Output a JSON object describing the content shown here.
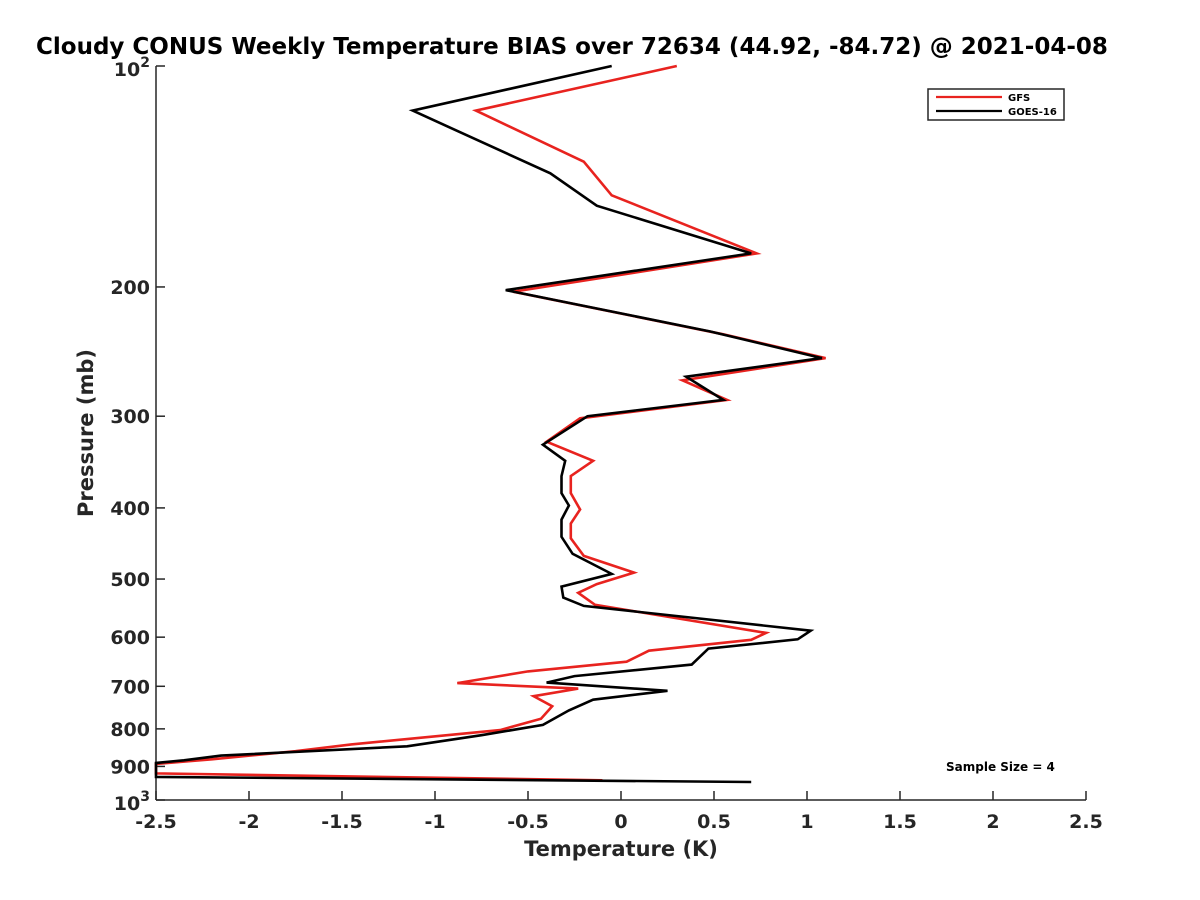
{
  "chart_data": {
    "type": "line",
    "title": "Cloudy CONUS Weekly Temperature BIAS over 72634 (44.92, -84.72) @ 2021-04-08",
    "xlabel": "Temperature (K)",
    "ylabel": "Pressure (mb)",
    "xlim": [
      -2.5,
      2.5
    ],
    "ylim": [
      100,
      1000
    ],
    "y_scale": "log",
    "y_direction": "reversed",
    "x_ticks": [
      "-2.5",
      "-2",
      "-1.5",
      "-1",
      "-0.5",
      "0",
      "0.5",
      "1",
      "1.5",
      "2",
      "2.5"
    ],
    "y_ticks": [
      {
        "value": 100,
        "base": "10",
        "exp": "2"
      },
      {
        "value": 200,
        "label": "200"
      },
      {
        "value": 300,
        "label": "300"
      },
      {
        "value": 400,
        "label": "400"
      },
      {
        "value": 500,
        "label": "500"
      },
      {
        "value": 600,
        "label": "600"
      },
      {
        "value": 700,
        "label": "700"
      },
      {
        "value": 800,
        "label": "800"
      },
      {
        "value": 900,
        "label": "900"
      },
      {
        "value": 1000,
        "base": "10",
        "exp": "3"
      }
    ],
    "legend_position": "top-right",
    "annotation": "Sample Size = 4",
    "series": [
      {
        "name": "GFS",
        "color": "#e8231f",
        "points": [
          [
            0.3,
            100
          ],
          [
            -0.78,
            115
          ],
          [
            -0.2,
            135
          ],
          [
            -0.05,
            150
          ],
          [
            0.73,
            180
          ],
          [
            -0.58,
            203
          ],
          [
            0.55,
            232
          ],
          [
            1.1,
            250
          ],
          [
            0.33,
            268
          ],
          [
            0.57,
            285
          ],
          [
            -0.22,
            302
          ],
          [
            -0.4,
            325
          ],
          [
            -0.15,
            345
          ],
          [
            -0.27,
            362
          ],
          [
            -0.27,
            382
          ],
          [
            -0.22,
            402
          ],
          [
            -0.27,
            420
          ],
          [
            -0.27,
            440
          ],
          [
            -0.2,
            465
          ],
          [
            0.07,
            490
          ],
          [
            -0.13,
            508
          ],
          [
            -0.23,
            522
          ],
          [
            -0.14,
            542
          ],
          [
            0.78,
            592
          ],
          [
            0.7,
            605
          ],
          [
            0.15,
            626
          ],
          [
            0.03,
            648
          ],
          [
            -0.5,
            668
          ],
          [
            -0.88,
            693
          ],
          [
            -0.23,
            705
          ],
          [
            -0.47,
            722
          ],
          [
            -0.37,
            745
          ],
          [
            -0.43,
            775
          ],
          [
            -0.65,
            803
          ],
          [
            -1.45,
            840
          ],
          [
            -1.75,
            858
          ],
          [
            -2.2,
            880
          ],
          [
            -2.5,
            893
          ],
          [
            -2.5,
            920
          ],
          [
            -0.1,
            940
          ]
        ]
      },
      {
        "name": "GOES-16",
        "color": "#000000",
        "points": [
          [
            -0.05,
            100
          ],
          [
            -1.12,
            115
          ],
          [
            -0.38,
            140
          ],
          [
            -0.13,
            155
          ],
          [
            0.7,
            180
          ],
          [
            -0.62,
            202
          ],
          [
            0.48,
            230
          ],
          [
            1.08,
            250
          ],
          [
            0.35,
            265
          ],
          [
            0.55,
            285
          ],
          [
            -0.18,
            300
          ],
          [
            -0.42,
            328
          ],
          [
            -0.3,
            345
          ],
          [
            -0.32,
            362
          ],
          [
            -0.32,
            382
          ],
          [
            -0.28,
            397
          ],
          [
            -0.32,
            415
          ],
          [
            -0.32,
            438
          ],
          [
            -0.26,
            462
          ],
          [
            -0.05,
            492
          ],
          [
            -0.32,
            512
          ],
          [
            -0.31,
            530
          ],
          [
            -0.2,
            544
          ],
          [
            1.02,
            588
          ],
          [
            0.95,
            604
          ],
          [
            0.47,
            622
          ],
          [
            0.38,
            654
          ],
          [
            -0.25,
            678
          ],
          [
            -0.4,
            692
          ],
          [
            0.25,
            710
          ],
          [
            -0.15,
            730
          ],
          [
            -0.28,
            755
          ],
          [
            -0.42,
            790
          ],
          [
            -0.75,
            816
          ],
          [
            -1.15,
            845
          ],
          [
            -2.15,
            870
          ],
          [
            -2.35,
            883
          ],
          [
            -2.5,
            890
          ],
          [
            -2.5,
            930
          ],
          [
            0.7,
            945
          ]
        ]
      }
    ]
  }
}
